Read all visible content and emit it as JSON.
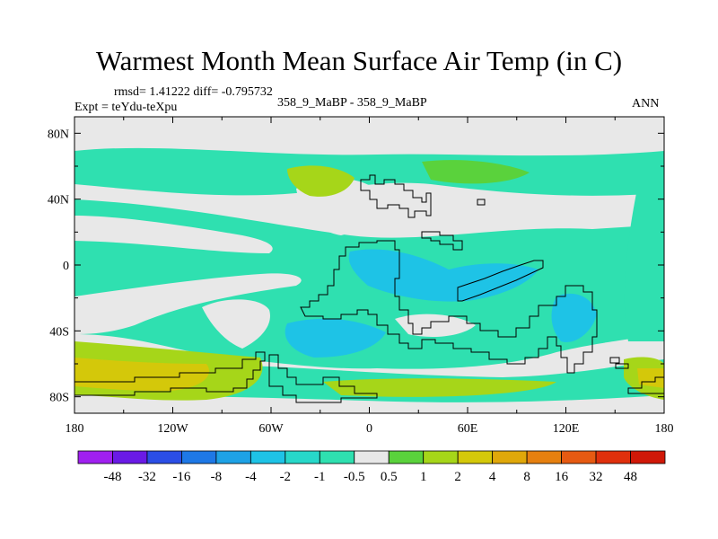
{
  "title": "Warmest Month Mean Surface Air Temp (in C)",
  "stats": "rmsd= 1.41222 diff= -0.795732",
  "center_label": "358_9_MaBP - 358_9_MaBP",
  "left_label": "Expt = teYdu-teXpu",
  "right_label": "ANN",
  "map": {
    "projection": "cylindrical equidistant",
    "lon_range": [
      -180,
      180
    ],
    "lat_range": [
      -90,
      90
    ],
    "x_tick_labels": [
      "180",
      "120W",
      "60W",
      "0",
      "60E",
      "120E",
      "180"
    ],
    "x_tick_values": [
      -180,
      -120,
      -60,
      0,
      60,
      120,
      180
    ],
    "y_tick_labels": [
      "80N",
      "40N",
      "0",
      "40S",
      "80S"
    ],
    "y_tick_values": [
      80,
      40,
      0,
      -40,
      -80
    ]
  },
  "colorbar": {
    "labels": [
      "-48",
      "-32",
      "-16",
      "-8",
      "-4",
      "-2",
      "-1",
      "-0.5",
      "0.5",
      "1",
      "2",
      "4",
      "8",
      "16",
      "32",
      "48"
    ],
    "colors": [
      "#a020f0",
      "#6a1ae6",
      "#2b4ee6",
      "#1e78e6",
      "#1ea2e6",
      "#1ec3e6",
      "#27d8c9",
      "#2fe0b0",
      "#e8e8e8",
      "#5ad23c",
      "#a6d619",
      "#d4c80a",
      "#e0a80a",
      "#e68010",
      "#e65a12",
      "#e0300c",
      "#d01808"
    ]
  }
}
